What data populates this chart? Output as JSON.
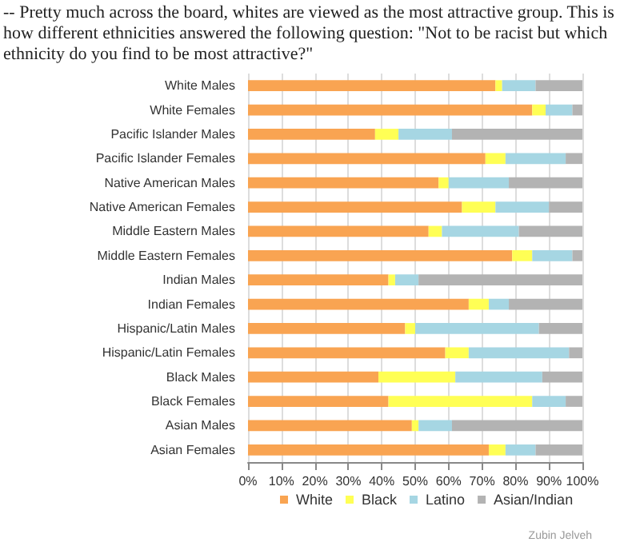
{
  "chart_data": {
    "type": "bar",
    "orientation": "horizontal",
    "stacked": true,
    "title": "-- Pretty much across the board, whites are viewed as the most attractive group. This is how different ethnicities answered the following question: \"Not to be racist but which ethnicity do you find to be most attractive?\"",
    "categories": [
      "White Males",
      "White Females",
      "Pacific Islander Males",
      "Pacific Islander Females",
      "Native American Males",
      "Native American Females",
      "Middle Eastern Males",
      "Middle Eastern Females",
      "Indian Males",
      "Indian Females",
      "Hispanic/Latin Males",
      "Hispanic/Latin Females",
      "Black Males",
      "Black Females",
      "Asian Males",
      "Asian Females"
    ],
    "series": [
      {
        "name": "White",
        "color": "#f9a452",
        "values": [
          74,
          85,
          38,
          71,
          57,
          64,
          54,
          79,
          42,
          66,
          47,
          59,
          39,
          42,
          49,
          72
        ]
      },
      {
        "name": "Black",
        "color": "#ffff55",
        "values": [
          2,
          4,
          7,
          6,
          3,
          10,
          4,
          6,
          2,
          6,
          3,
          7,
          23,
          43,
          2,
          5
        ]
      },
      {
        "name": "Latino",
        "color": "#a6d6e3",
        "values": [
          10,
          8,
          16,
          18,
          18,
          16,
          23,
          12,
          7,
          6,
          37,
          30,
          26,
          10,
          10,
          9
        ]
      },
      {
        "name": "Asian/Indian",
        "color": "#b3b3b3",
        "values": [
          14,
          3,
          39,
          5,
          22,
          10,
          19,
          3,
          49,
          22,
          13,
          4,
          12,
          5,
          39,
          14
        ]
      }
    ],
    "xlim": [
      0,
      100
    ],
    "xticks": [
      {
        "value": 0,
        "label": "0%"
      },
      {
        "value": 10,
        "label": "10%"
      },
      {
        "value": 20,
        "label": "20%"
      },
      {
        "value": 30,
        "label": "30%"
      },
      {
        "value": 40,
        "label": "40%"
      },
      {
        "value": 50,
        "label": "50%"
      },
      {
        "value": 60,
        "label": "60%"
      },
      {
        "value": 70,
        "label": "70%"
      },
      {
        "value": 80,
        "label": "80%"
      },
      {
        "value": 90,
        "label": "90%"
      },
      {
        "value": 100,
        "label": "100%"
      }
    ],
    "grid": "x",
    "legend": "bottom",
    "annotations": [
      "Zubin Jelveh"
    ]
  }
}
